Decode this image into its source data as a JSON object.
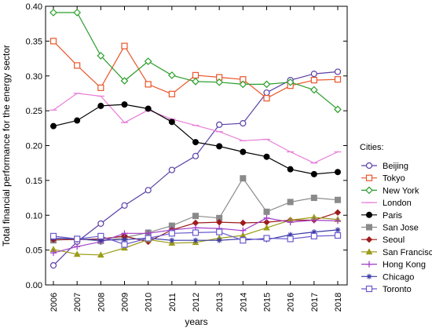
{
  "chart_data": {
    "type": "line",
    "xlabel": "years",
    "ylabel": "Total financial performance for the energy sector",
    "ylim": [
      0,
      0.4
    ],
    "yticks": [
      "0.00",
      "0.05",
      "0.10",
      "0.15",
      "0.20",
      "0.25",
      "0.30",
      "0.35",
      "0.40"
    ],
    "x": [
      "2006",
      "2007",
      "2008",
      "2009",
      "2010",
      "2011",
      "2012",
      "2013",
      "2014",
      "2015",
      "2016",
      "2017",
      "2018"
    ],
    "grid": false,
    "legend_title": "Cities:",
    "legend_position": "right",
    "series": [
      {
        "name": "Beijing",
        "color": "#5b3fa6",
        "marker": "circle-open",
        "values": [
          0.028,
          0.062,
          0.088,
          0.114,
          0.136,
          0.165,
          0.185,
          0.23,
          0.232,
          0.276,
          0.294,
          0.303,
          0.306
        ]
      },
      {
        "name": "Tokyo",
        "color": "#e8552a",
        "marker": "square-open",
        "values": [
          0.35,
          0.315,
          0.283,
          0.343,
          0.288,
          0.274,
          0.301,
          0.298,
          0.295,
          0.268,
          0.286,
          0.294,
          0.295
        ]
      },
      {
        "name": "New York",
        "color": "#2a9d2a",
        "marker": "diamond-open",
        "values": [
          0.391,
          0.391,
          0.329,
          0.293,
          0.321,
          0.301,
          0.292,
          0.291,
          0.288,
          0.288,
          0.291,
          0.28,
          0.252
        ]
      },
      {
        "name": "London",
        "color": "#e87fd8",
        "marker": "dash",
        "values": [
          0.251,
          0.275,
          0.271,
          0.233,
          0.251,
          0.238,
          0.229,
          0.22,
          0.207,
          0.209,
          0.191,
          0.175,
          0.191
        ]
      },
      {
        "name": "Paris",
        "color": "#000000",
        "marker": "circle-filled",
        "values": [
          0.228,
          0.236,
          0.257,
          0.259,
          0.253,
          0.234,
          0.205,
          0.199,
          0.191,
          0.184,
          0.166,
          0.159,
          0.162
        ]
      },
      {
        "name": "San Jose",
        "color": "#8a8a8a",
        "marker": "square-filled",
        "values": [
          0.064,
          0.066,
          0.063,
          0.068,
          0.075,
          0.085,
          0.099,
          0.096,
          0.153,
          0.105,
          0.119,
          0.125,
          0.122
        ]
      },
      {
        "name": "Seoul",
        "color": "#9e1b1b",
        "marker": "diamond-filled",
        "values": [
          0.065,
          0.065,
          0.066,
          0.07,
          0.062,
          0.079,
          0.089,
          0.09,
          0.089,
          0.09,
          0.093,
          0.093,
          0.104
        ]
      },
      {
        "name": "San Francisco",
        "color": "#9c9c1a",
        "marker": "triangle",
        "values": [
          0.051,
          0.044,
          0.043,
          0.053,
          0.065,
          0.06,
          0.061,
          0.067,
          0.071,
          0.082,
          0.093,
          0.097,
          0.094
        ]
      },
      {
        "name": "Hong Kong",
        "color": "#a33fc7",
        "marker": "plus",
        "values": [
          0.046,
          0.055,
          0.062,
          0.074,
          0.074,
          0.079,
          0.082,
          0.081,
          0.078,
          0.096,
          0.09,
          0.093,
          0.092
        ]
      },
      {
        "name": "Chicago",
        "color": "#3a3aa8",
        "marker": "star",
        "values": [
          0.067,
          0.066,
          0.064,
          0.065,
          0.067,
          0.064,
          0.064,
          0.064,
          0.066,
          0.065,
          0.072,
          0.076,
          0.079
        ]
      },
      {
        "name": "Toronto",
        "color": "#6a5acd",
        "marker": "square-open",
        "values": [
          0.07,
          0.066,
          0.07,
          0.058,
          0.067,
          0.074,
          0.075,
          0.076,
          0.064,
          0.067,
          0.066,
          0.07,
          0.071
        ]
      }
    ]
  }
}
